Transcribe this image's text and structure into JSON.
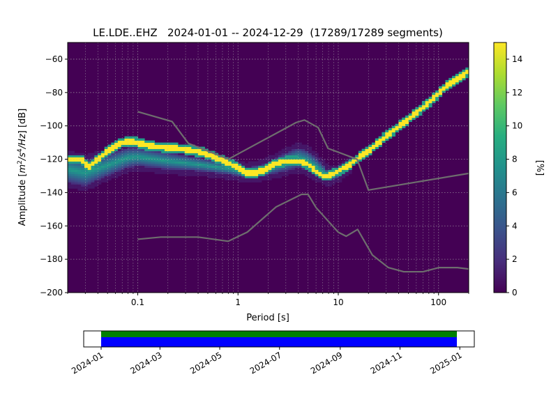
{
  "chart_data": [
    {
      "type": "heatmap",
      "title": "LE.LDE..EHZ   2024-01-01 -- 2024-12-29  (17289/17289 segments)",
      "xlabel": "Period [s]",
      "ylabel_prefix": "Amplitude [",
      "ylabel_math_1": "m",
      "ylabel_sup_1": "2",
      "ylabel_math_2": "/s",
      "ylabel_sup_2": "4",
      "ylabel_math_3": "/Hz",
      "ylabel_suffix": "] [dB]",
      "x_scale": "log",
      "xlim": [
        0.02,
        200
      ],
      "ylim": [
        -200,
        -50
      ],
      "x_ticks": [
        {
          "value": 0.1,
          "label": "0.1"
        },
        {
          "value": 1,
          "label": "1"
        },
        {
          "value": 10,
          "label": "10"
        },
        {
          "value": 100,
          "label": "100"
        }
      ],
      "y_ticks": [
        {
          "value": -60,
          "label": "−60"
        },
        {
          "value": -80,
          "label": "−80"
        },
        {
          "value": -100,
          "label": "−100"
        },
        {
          "value": -120,
          "label": "−120"
        },
        {
          "value": -140,
          "label": "−140"
        },
        {
          "value": -160,
          "label": "−160"
        },
        {
          "value": -180,
          "label": "−180"
        },
        {
          "value": -200,
          "label": "−200"
        }
      ],
      "grid": true,
      "colormap": "viridis",
      "colorbar": {
        "label": "[%]",
        "range": [
          0,
          15
        ],
        "ticks": [
          {
            "value": 0,
            "label": "0"
          },
          {
            "value": 2,
            "label": "2"
          },
          {
            "value": 4,
            "label": "4"
          },
          {
            "value": 6,
            "label": "6"
          },
          {
            "value": 8,
            "label": "8"
          },
          {
            "value": 10,
            "label": "10"
          },
          {
            "value": 12,
            "label": "12"
          },
          {
            "value": 14,
            "label": "14"
          }
        ]
      },
      "mode_curve": {
        "period": [
          0.02,
          0.028,
          0.032,
          0.04,
          0.05,
          0.06,
          0.07,
          0.08,
          0.1,
          0.13,
          0.2,
          0.3,
          0.45,
          0.6,
          0.8,
          1.0,
          1.2,
          1.5,
          1.9,
          2.3,
          3.0,
          4.0,
          5.0,
          6.0,
          7.0,
          8.0,
          10.0,
          13.0,
          16.0,
          20.0,
          30.0,
          50.0,
          80.0,
          120.0,
          160.0,
          200.0
        ],
        "db": [
          -120,
          -120,
          -125,
          -120,
          -115,
          -112,
          -110,
          -109,
          -110,
          -112,
          -113,
          -114,
          -116,
          -119,
          -122,
          -125,
          -128,
          -128,
          -126,
          -123,
          -121,
          -121,
          -123,
          -127,
          -130,
          -130,
          -127,
          -123,
          -119,
          -115,
          -106,
          -96,
          -86,
          -76,
          -71,
          -67
        ]
      },
      "spread_band": {
        "period": [
          0.02,
          0.03,
          0.05,
          0.08,
          0.1,
          0.2,
          0.4,
          0.8,
          1.2,
          1.8,
          3.0,
          4.0,
          5.0,
          6.0,
          7.0,
          8.0,
          10.0,
          13.0
        ],
        "upper_db": [
          -118,
          -120,
          -117,
          -113,
          -113,
          -116,
          -119,
          -122,
          -125,
          -123,
          -116,
          -113,
          -115,
          -119,
          -123,
          -127,
          -126,
          -122
        ],
        "lower_db": [
          -134,
          -136,
          -130,
          -125,
          -124,
          -126,
          -127,
          -129,
          -131,
          -130,
          -127,
          -125,
          -127,
          -130,
          -132,
          -133,
          -131,
          -126
        ]
      },
      "noise_models": [
        {
          "period": [
            0.1,
            0.22,
            0.32,
            0.8,
            3.8,
            4.6,
            6.3,
            7.9,
            15.4,
            20.0,
            354.8
          ],
          "db": [
            -91.5,
            -97.4,
            -110.5,
            -120.0,
            -98.0,
            -96.5,
            -101.0,
            -113.5,
            -120.0,
            -138.5,
            -126.0
          ]
        },
        {
          "period": [
            0.1,
            0.17,
            0.4,
            0.8,
            1.24,
            2.4,
            4.3,
            5.0,
            6.0,
            10.0,
            12.0,
            15.6,
            21.9,
            31.6,
            45.0,
            70.0,
            101.0,
            154.0,
            328.0
          ],
          "db": [
            -168.0,
            -166.7,
            -166.7,
            -169.2,
            -163.7,
            -148.6,
            -141.1,
            -141.1,
            -149.0,
            -163.8,
            -166.2,
            -162.1,
            -177.5,
            -185.0,
            -187.5,
            -187.5,
            -185.0,
            -185.0,
            -187.5
          ]
        }
      ]
    },
    {
      "type": "timeline",
      "start": "2024-01-01",
      "end": "2025-01-10",
      "data_start": "2024-01-01",
      "data_end": "2024-12-29",
      "colors": {
        "top": "#008000",
        "bottom": "#0000ff"
      },
      "tick_labels": [
        "2024-01",
        "2024-03",
        "2024-05",
        "2024-07",
        "2024-09",
        "2024-11",
        "2025-01"
      ],
      "tick_dates": [
        "2024-01-01",
        "2024-03-01",
        "2024-05-01",
        "2024-07-01",
        "2024-09-01",
        "2024-11-01",
        "2025-01-01"
      ]
    }
  ]
}
